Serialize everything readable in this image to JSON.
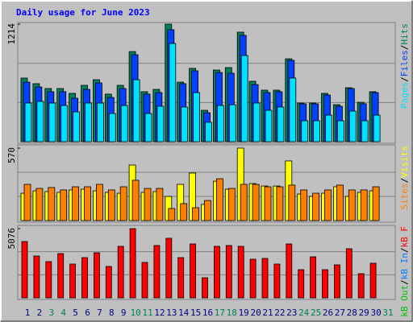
{
  "chart_data": {
    "type": "bar",
    "title": "Daily usage for June 2023",
    "legend_separator": "/",
    "categories": [
      "1",
      "2",
      "3",
      "4",
      "5",
      "6",
      "7",
      "8",
      "9",
      "10",
      "11",
      "12",
      "13",
      "14",
      "15",
      "16",
      "17",
      "18",
      "19",
      "20",
      "21",
      "22",
      "23",
      "24",
      "25",
      "26",
      "27",
      "28",
      "29",
      "30",
      "31"
    ],
    "category_colors": [
      "#000080",
      "#000080",
      "#00805c",
      "#00805c",
      "#000080",
      "#000080",
      "#000080",
      "#000080",
      "#000080",
      "#00805c",
      "#00805c",
      "#000080",
      "#000080",
      "#000080",
      "#000080",
      "#000080",
      "#00805c",
      "#00805c",
      "#000080",
      "#000080",
      "#000080",
      "#000080",
      "#000080",
      "#00805c",
      "#00805c",
      "#000080",
      "#000080",
      "#000080",
      "#000080",
      "#000080",
      "#00805c"
    ],
    "panels": [
      {
        "ylim": [
          0,
          1214
        ],
        "yticks": [
          1214
        ],
        "series": [
          {
            "name": "Hits",
            "color": "#00805c",
            "values": [
              657,
              599,
              549,
              549,
              499,
              582,
              640,
              491,
              582,
              931,
              516,
              540,
              1214,
              615,
              757,
              324,
              740,
              765,
              1131,
              624,
              532,
              532,
              856,
              399,
              399,
              499,
              382,
              557,
              407,
              516,
              null
            ]
          },
          {
            "name": "Files",
            "color": "#0040ff",
            "values": [
              615,
              565,
              516,
              516,
              449,
              540,
              607,
              457,
              549,
              898,
              491,
              507,
              1156,
              599,
              732,
              299,
              715,
              707,
              1098,
              590,
              507,
              516,
              840,
              391,
              391,
              482,
              366,
              549,
              391,
              507,
              null
            ]
          },
          {
            "name": "Pages",
            "color": "#00e0ff",
            "values": [
              399,
              416,
              399,
              374,
              308,
              399,
              399,
              291,
              374,
              640,
              291,
              366,
              1014,
              358,
              507,
              200,
              374,
              382,
              890,
              399,
              324,
              358,
              657,
              216,
              216,
              274,
              216,
              316,
              216,
              274,
              null
            ]
          }
        ]
      },
      {
        "ylim": [
          0,
          570
        ],
        "yticks": [
          570
        ],
        "series": [
          {
            "name": "Visits",
            "color": "#ffff00",
            "values": [
              215,
              234,
              228,
              222,
              241,
              247,
              234,
              222,
              215,
              437,
              222,
              228,
              190,
              285,
              374,
              127,
              310,
              247,
              570,
              291,
              272,
              272,
              469,
              209,
              190,
              215,
              266,
              190,
              222,
              234,
              null
            ]
          },
          {
            "name": "Sites",
            "color": "#ff8000",
            "values": [
              285,
              253,
              260,
              241,
              266,
              266,
              285,
              241,
              266,
              317,
              253,
              253,
              95,
              133,
              101,
              158,
              329,
              253,
              285,
              285,
              266,
              266,
              279,
              241,
              215,
              241,
              279,
              241,
              241,
              266,
              null
            ]
          }
        ]
      },
      {
        "ylim": [
          0,
          5076
        ],
        "yticks": [
          5076
        ],
        "series": [
          {
            "name": "kB F",
            "color": "#ff0000",
            "values": [
              4131,
              3069,
              2656,
              3245,
              2479,
              2951,
              3305,
              2302,
              3777,
              5076,
              2597,
              3836,
              4368,
              2951,
              3954,
              1475,
              3777,
              3836,
              3777,
              2833,
              2892,
              2479,
              3954,
              2066,
              3010,
              2066,
              2420,
              3600,
              1771,
              2538,
              null
            ]
          },
          {
            "name": "kB In",
            "color": "#0080ff"
          },
          {
            "name": "kB Out",
            "color": "#00c000"
          }
        ]
      }
    ]
  }
}
